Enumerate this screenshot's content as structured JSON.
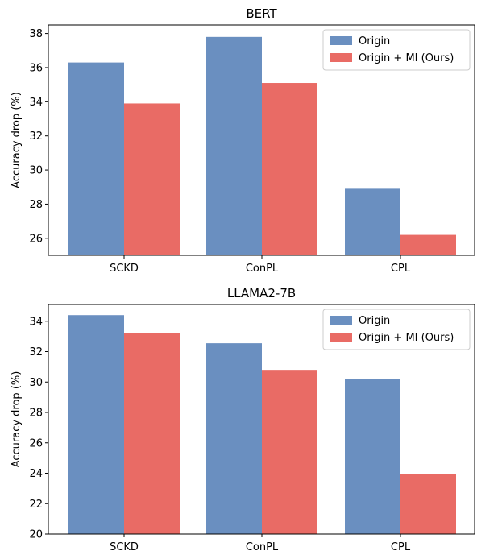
{
  "chart_data": [
    {
      "type": "bar",
      "title": "BERT",
      "ylabel": "Accuracy drop (%)",
      "xlabel": "",
      "categories": [
        "SCKD",
        "ConPL",
        "CPL"
      ],
      "series": [
        {
          "name": "Origin",
          "color": "#6a8fc0",
          "values": [
            36.3,
            37.8,
            28.9
          ]
        },
        {
          "name": "Origin + MI (Ours)",
          "color": "#e96b65",
          "values": [
            33.9,
            35.1,
            26.2
          ]
        }
      ],
      "ylim": [
        25,
        38.5
      ],
      "yticks": [
        26,
        28,
        30,
        32,
        34,
        36,
        38
      ],
      "legend": "top-right",
      "grid": false
    },
    {
      "type": "bar",
      "title": "LLAMA2-7B",
      "ylabel": "Accuracy drop (%)",
      "xlabel": "",
      "categories": [
        "SCKD",
        "ConPL",
        "CPL"
      ],
      "series": [
        {
          "name": "Origin",
          "color": "#6a8fc0",
          "values": [
            34.4,
            32.55,
            30.2
          ]
        },
        {
          "name": "Origin + MI (Ours)",
          "color": "#e96b65",
          "values": [
            33.2,
            30.8,
            23.95
          ]
        }
      ],
      "ylim": [
        20,
        35.1
      ],
      "yticks": [
        20,
        22,
        24,
        26,
        28,
        30,
        32,
        34
      ],
      "legend": "top-right",
      "grid": false
    }
  ]
}
